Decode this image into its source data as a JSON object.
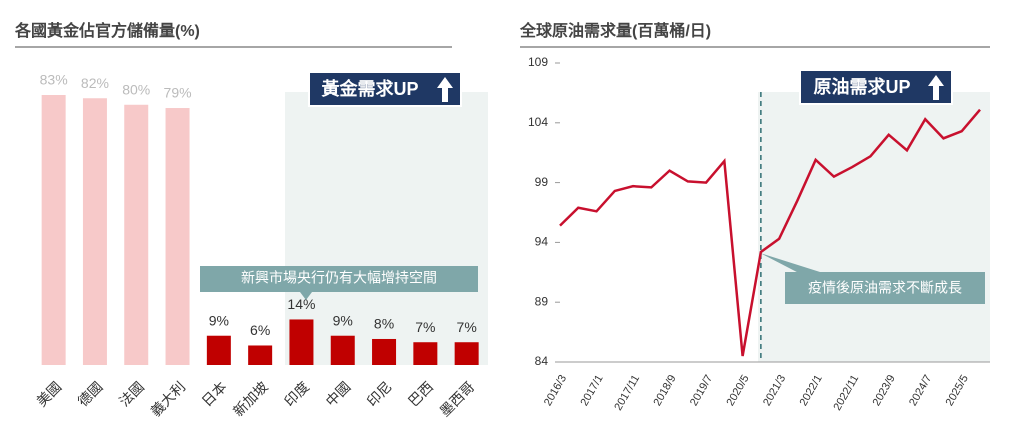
{
  "chart_data": [
    {
      "type": "bar",
      "title": "各國黃金佔官方儲備量(%)",
      "categories": [
        "美國",
        "德國",
        "法國",
        "義大利",
        "日本",
        "新加坡",
        "印度",
        "中國",
        "印尼",
        "巴西",
        "墨西哥"
      ],
      "values": [
        83,
        82,
        80,
        79,
        9,
        6,
        14,
        9,
        8,
        7,
        7
      ],
      "value_labels": [
        "83%",
        "82%",
        "80%",
        "79%",
        "9%",
        "6%",
        "14%",
        "9%",
        "8%",
        "7%",
        "7%"
      ],
      "colors": [
        "#f7c9c9",
        "#f7c9c9",
        "#f7c9c9",
        "#f7c9c9",
        "#c00000",
        "#c00000",
        "#c00000",
        "#c00000",
        "#c00000",
        "#c00000",
        "#c00000"
      ],
      "annotations": [
        "黃金需求UP",
        "新興市場央行仍有大幅增持空間"
      ]
    },
    {
      "type": "line",
      "title": "全球原油需求量(百萬桶/日)",
      "categories": [
        "2016/3",
        null,
        "2017/1",
        null,
        "2017/11",
        null,
        "2018/9",
        null,
        "2019/7",
        null,
        "2020/5",
        null,
        "2021/3",
        null,
        "2022/1",
        null,
        "2022/11",
        null,
        "2023/9",
        null,
        "2024/7",
        null,
        "2025/5",
        null
      ],
      "series": [
        {
          "name": "全球原油需求量",
          "color": "#c8102e",
          "values": [
            95.4,
            96.9,
            96.6,
            98.3,
            98.7,
            98.6,
            100.0,
            99.1,
            99.0,
            100.8,
            84.5,
            93.2,
            94.3,
            97.5,
            100.9,
            99.5,
            100.3,
            101.2,
            103.0,
            101.7,
            104.3,
            102.7,
            103.3,
            105.1
          ]
        }
      ],
      "ylim": [
        84,
        109
      ],
      "yticks": [
        84,
        89,
        94,
        99,
        104,
        109
      ],
      "annotations": [
        "原油需求UP",
        "疫情後原油需求不斷成長"
      ]
    }
  ]
}
